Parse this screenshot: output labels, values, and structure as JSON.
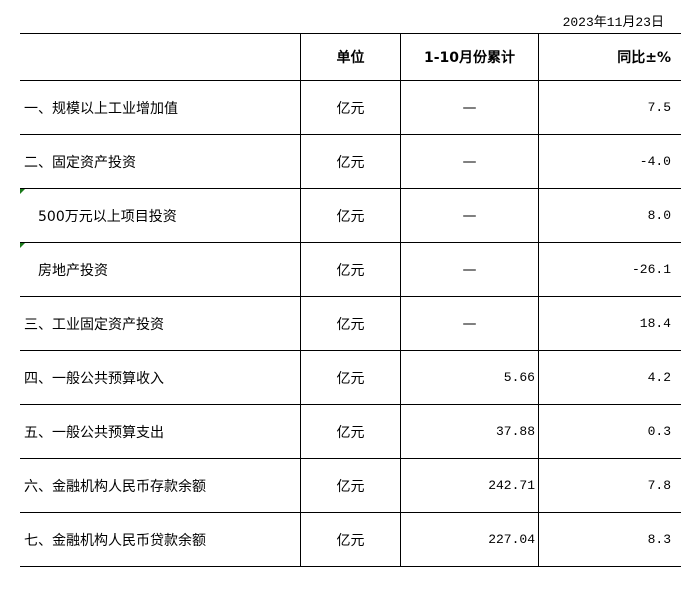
{
  "date": "2023年11月23日",
  "headers": [
    "",
    "单位",
    "1-10月份累计",
    "同比±%"
  ],
  "rows": [
    {
      "name": "一、规模以上工业增加值",
      "unit": "亿元",
      "cumulative": "—",
      "yoy": "7.5",
      "indent": false
    },
    {
      "name": "二、固定资产投资",
      "unit": "亿元",
      "cumulative": "—",
      "yoy": "-4.0",
      "indent": false
    },
    {
      "name": "500万元以上项目投资",
      "unit": "亿元",
      "cumulative": "—",
      "yoy": "8.0",
      "indent": true
    },
    {
      "name": "房地产投资",
      "unit": "亿元",
      "cumulative": "—",
      "yoy": "-26.1",
      "indent": true
    },
    {
      "name": "三、工业固定资产投资",
      "unit": "亿元",
      "cumulative": "—",
      "yoy": "18.4",
      "indent": false
    },
    {
      "name": "四、一般公共预算收入",
      "unit": "亿元",
      "cumulative": "5.66",
      "yoy": "4.2",
      "indent": false
    },
    {
      "name": "五、一般公共预算支出",
      "unit": "亿元",
      "cumulative": "37.88",
      "yoy": "0.3",
      "indent": false
    },
    {
      "name": "六、金融机构人民币存款余额",
      "unit": "亿元",
      "cumulative": "242.71",
      "yoy": "7.8",
      "indent": false
    },
    {
      "name": "七、金融机构人民币贷款余额",
      "unit": "亿元",
      "cumulative": "227.04",
      "yoy": "8.3",
      "indent": false
    }
  ],
  "colors": {
    "cell_marker": "#1a7a1a"
  }
}
